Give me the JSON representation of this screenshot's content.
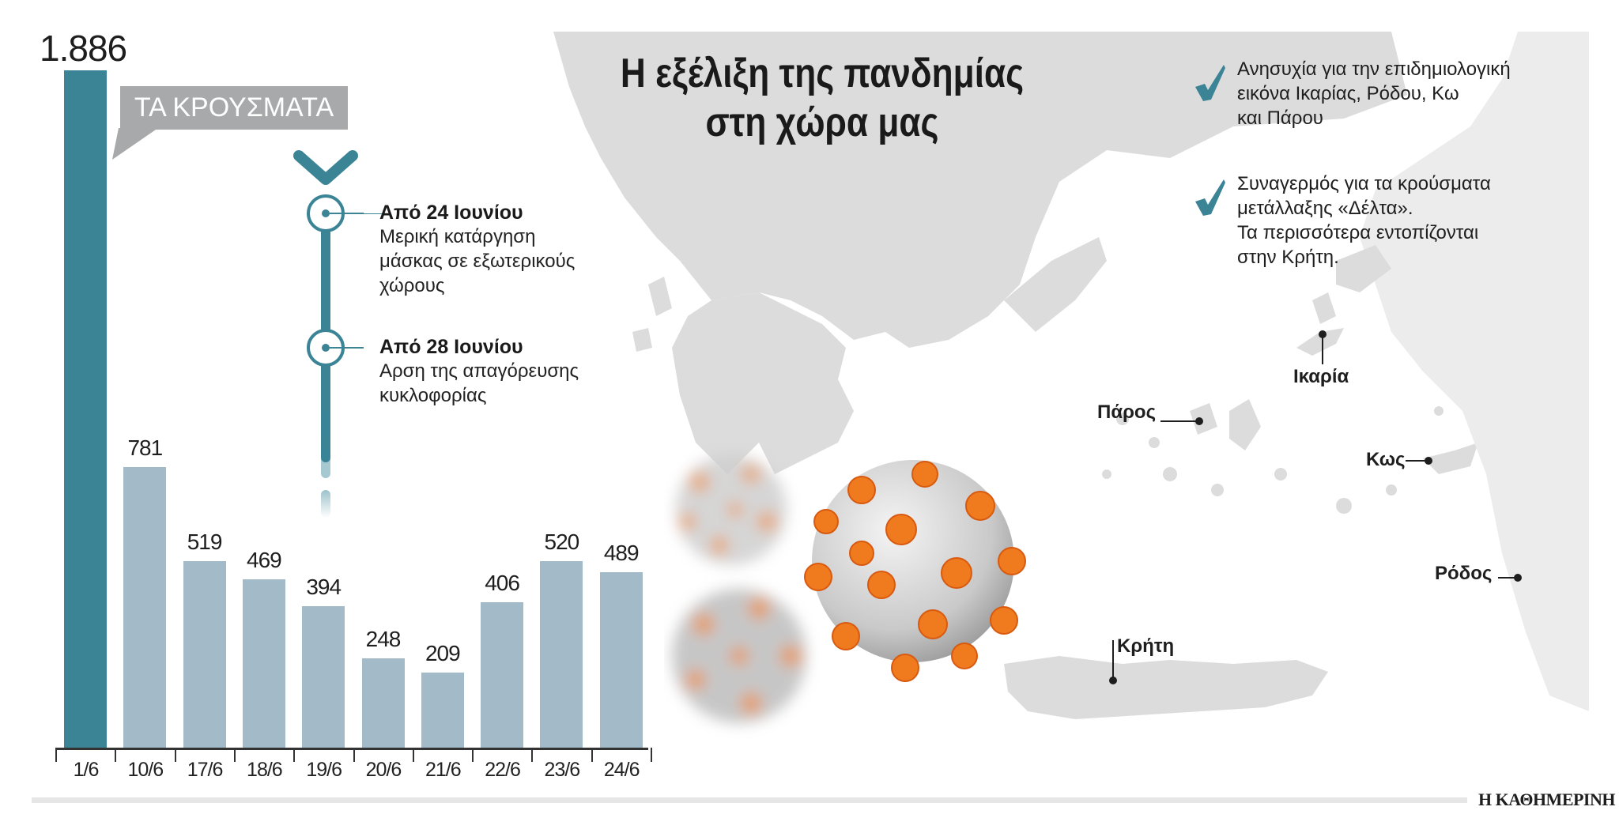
{
  "title": {
    "line1": "Η εξέλιξη της πανδημίας",
    "line2": "στη χώρα μας"
  },
  "callout_label": "ΤΑ ΚΡΟΥΣΜΑΤΑ",
  "timeline": [
    {
      "heading": "Από 24 Ιουνίου",
      "lines": [
        "Μερική κατάργηση",
        "μάσκας σε εξωτερικούς",
        "χώρους"
      ]
    },
    {
      "heading": "Από 28 Ιουνίου",
      "lines": [
        "Αρση της απαγόρευσης",
        "κυκλοφορίας"
      ]
    }
  ],
  "notes": [
    {
      "icon": "check-icon",
      "lines": [
        "Ανησυχία για την επιδημιολογική",
        "εικόνα Ικαρίας, Ρόδου, Κω",
        "και Πάρου"
      ]
    },
    {
      "icon": "check-icon",
      "lines": [
        "Συναγερμός για τα κρούσματα",
        "μετάλλαξης «Δέλτα».",
        "Τα περισσότερα εντοπίζονται",
        "στην Κρήτη."
      ]
    }
  ],
  "map_labels": [
    {
      "name": "Ικαρία"
    },
    {
      "name": "Πάρος"
    },
    {
      "name": "Κως"
    },
    {
      "name": "Ρόδος"
    },
    {
      "name": "Κρήτη"
    }
  ],
  "footer": {
    "logo": "Η ΚΑΘΗΜΕΡΙΝΗ"
  },
  "colors": {
    "highlight_bar": "#3a8496",
    "bar": "#a3bbc8",
    "callout": "#a8a9ab",
    "accent": "#3a8496",
    "virus_spike": "#f07a1e",
    "map": "#d9d9da"
  },
  "chart_data": {
    "type": "bar",
    "title": "ΤΑ ΚΡΟΥΣΜΑΤΑ",
    "categories": [
      "1/6",
      "10/6",
      "17/6",
      "18/6",
      "19/6",
      "20/6",
      "21/6",
      "22/6",
      "23/6",
      "24/6"
    ],
    "values": [
      1886,
      781,
      519,
      469,
      394,
      248,
      209,
      406,
      520,
      489
    ],
    "value_labels": [
      "1.886",
      "781",
      "519",
      "469",
      "394",
      "248",
      "209",
      "406",
      "520",
      "489"
    ],
    "xlabel": "",
    "ylabel": "",
    "ylim": [
      0,
      1886
    ],
    "grid": false,
    "legend": null,
    "highlight_index": 0
  }
}
